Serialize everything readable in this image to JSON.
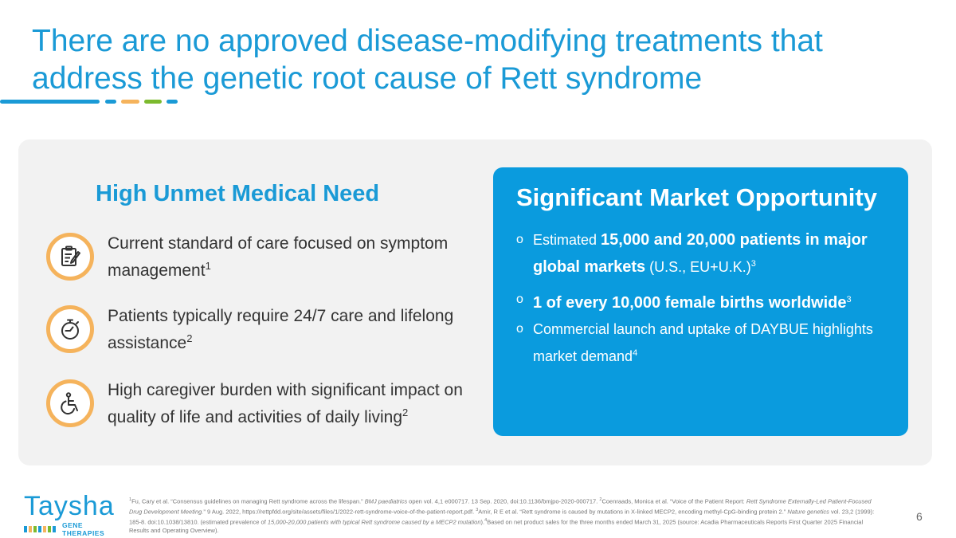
{
  "title": "There are no approved disease-modifying treatments that address the genetic root cause of Rett syndrome",
  "colors": {
    "accent_blue": "#1a9ad6",
    "accent_orange": "#f5b35c",
    "accent_green": "#7cba2e",
    "panel_bg": "#f2f2f2",
    "box_blue": "#0a9bde"
  },
  "left": {
    "heading": "High Unmet Medical Need",
    "items": [
      {
        "icon": "clipboard-icon",
        "text": "Current standard of care focused on symptom management",
        "ref": "1"
      },
      {
        "icon": "stopwatch-icon",
        "text": "Patients typically require 24/7 care and lifelong assistance",
        "ref": "2"
      },
      {
        "icon": "wheelchair-icon",
        "text": "High caregiver burden with significant impact on quality of life and activities of daily living",
        "ref": "2"
      }
    ]
  },
  "right": {
    "heading": "Significant Market Opportunity",
    "marker": "o",
    "b1": {
      "pre": "Estimated ",
      "bold": "15,000 and 20,000 patients in major global markets",
      "post": " (U.S., EU+U.K.)",
      "ref": "3"
    },
    "b2": {
      "bold": "1 of every 10,000 female births worldwide",
      "ref": "3"
    },
    "b3": {
      "text": "Commercial launch and uptake of DAYBUE highlights market demand",
      "ref": "4"
    }
  },
  "logo": {
    "word": "Taysha",
    "sub": "GENE THERAPIES"
  },
  "footnote": {
    "r1": "1",
    "p1": "Fu, Cary et al. “Consensus guidelines on managing Rett syndrome across the lifespan.” ",
    "i1": "BMJ paediatrics",
    "p2": " open vol. 4,1 e000717. 13 Sep. 2020, doi:10.1136/bmjpo-2020-000717. ",
    "r2": "2",
    "p3": "Coenraads, Monica et al. “Voice of the Patient Report: ",
    "i2": "Rett Syndrome Externally-Led Patient-Focused Drug Development Meeting.",
    "p4": "” 9 Aug. 2022, https://rettpfdd.org/site/assets/files/1/2022-rett-syndrome-voice-of-the-patient-report.pdf. ",
    "r3": "3",
    "p5": "Amir, R E et al. “Rett syndrome is caused by mutations in X-linked MECP2, encoding methyl-CpG-binding protein 2.” ",
    "i3": "Nature genetics",
    "p6": " vol. 23,2 (1999): 185-8. doi:10.1038/13810. (estimated prevalence of ",
    "i4": "15,000-20,000 patients with typical Rett syndrome caused by a MECP2 mutation",
    "p7": ").",
    "r4": "4",
    "p8": "Based on net product sales for the three months ended March 31, 2025 (source: Acadia Pharmaceuticals Reports First Quarter 2025 Financial Results and Operating Overview)."
  },
  "page_number": "6"
}
